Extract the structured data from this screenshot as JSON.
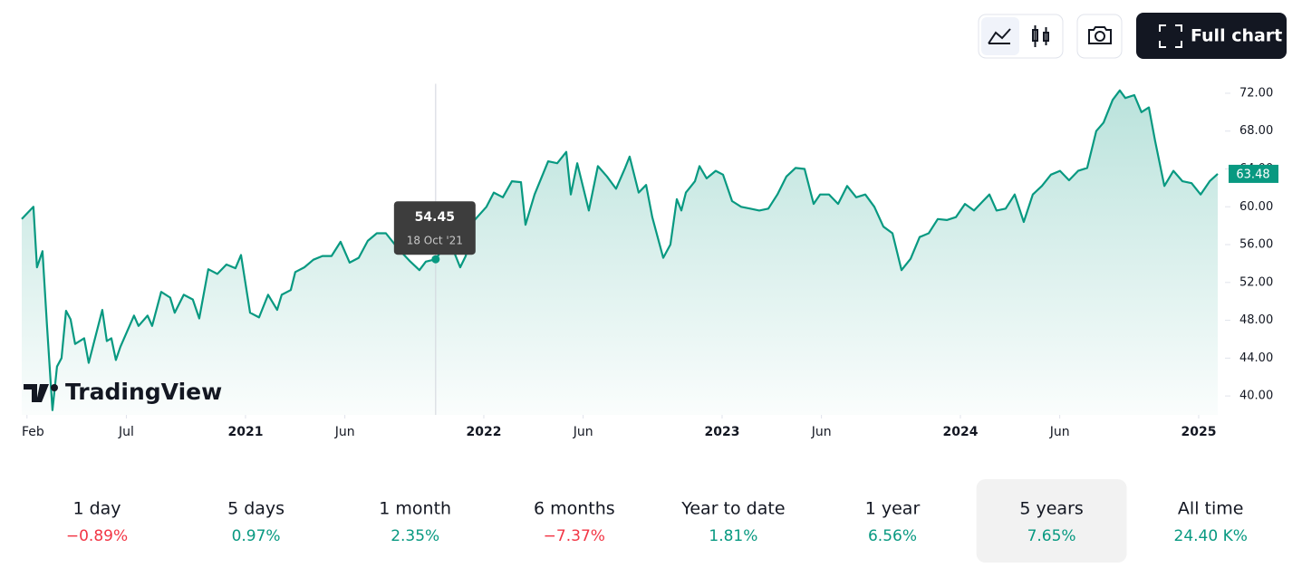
{
  "toolbar": {
    "full_chart": "Full chart"
  },
  "watermark": "TradingView",
  "chart_data": {
    "type": "line",
    "color": "#089981",
    "x": [
      2020.061,
      2020.11,
      2020.125,
      2020.148,
      2020.167,
      2020.19,
      2020.209,
      2020.228,
      2020.247,
      2020.266,
      2020.285,
      2020.323,
      2020.342,
      2020.399,
      2020.418,
      2020.437,
      2020.456,
      2020.475,
      2020.532,
      2020.551,
      2020.589,
      2020.608,
      2020.646,
      2020.684,
      2020.703,
      2020.741,
      2020.779,
      2020.806,
      2020.844,
      2020.882,
      2020.92,
      2020.958,
      2020.981,
      2021.019,
      2021.057,
      2021.095,
      2021.133,
      2021.152,
      2021.19,
      2021.209,
      2021.247,
      2021.285,
      2021.323,
      2021.361,
      2021.399,
      2021.437,
      2021.475,
      2021.513,
      2021.551,
      2021.589,
      2021.643,
      2021.688,
      2021.73,
      2021.757,
      2021.798,
      2021.84,
      2021.871,
      2021.901,
      2021.924,
      2021.954,
      2022.011,
      2022.042,
      2022.08,
      2022.118,
      2022.156,
      2022.175,
      2022.213,
      2022.27,
      2022.308,
      2022.346,
      2022.365,
      2022.392,
      2022.441,
      2022.479,
      2022.517,
      2022.555,
      2022.593,
      2022.612,
      2022.65,
      2022.681,
      2022.707,
      2022.753,
      2022.783,
      2022.81,
      2022.829,
      2022.848,
      2022.886,
      2022.905,
      2022.935,
      2022.973,
      2023.004,
      2023.042,
      2023.08,
      2023.118,
      2023.156,
      2023.194,
      2023.232,
      2023.27,
      2023.308,
      2023.346,
      2023.384,
      2023.411,
      2023.449,
      2023.487,
      2023.525,
      2023.563,
      2023.601,
      2023.639,
      2023.677,
      2023.715,
      2023.753,
      2023.791,
      2023.829,
      2023.867,
      2023.905,
      2023.943,
      2023.981,
      2024.019,
      2024.057,
      2024.095,
      2024.122,
      2024.152,
      2024.19,
      2024.228,
      2024.266,
      2024.304,
      2024.342,
      2024.38,
      2024.418,
      2024.456,
      2024.494,
      2024.532,
      2024.57,
      2024.601,
      2024.639,
      2024.669,
      2024.692,
      2024.73,
      2024.76,
      2024.791,
      2024.817,
      2024.856,
      2024.894,
      2024.932,
      2024.97,
      2025.008,
      2025.046,
      2025.08
    ],
    "values": [
      58.7,
      60.0,
      53.6,
      55.3,
      47.4,
      38.5,
      43.1,
      44.0,
      49.0,
      48.1,
      45.5,
      46.1,
      43.5,
      49.1,
      45.8,
      46.1,
      43.8,
      45.2,
      48.5,
      47.4,
      48.5,
      47.4,
      51.0,
      50.4,
      48.8,
      50.7,
      50.2,
      48.2,
      53.4,
      52.9,
      53.9,
      53.5,
      54.9,
      48.8,
      48.3,
      50.7,
      49.1,
      50.7,
      51.2,
      53.1,
      53.6,
      54.4,
      54.8,
      54.8,
      56.3,
      54.1,
      54.6,
      56.4,
      57.2,
      57.2,
      55.5,
      54.3,
      53.3,
      54.2,
      54.45,
      56.0,
      55.5,
      53.6,
      54.8,
      58.4,
      60.0,
      61.5,
      61.0,
      62.7,
      62.6,
      58.1,
      61.3,
      64.8,
      64.6,
      65.8,
      61.3,
      64.6,
      59.6,
      64.3,
      63.2,
      61.9,
      64.1,
      65.3,
      61.5,
      62.3,
      58.9,
      54.6,
      56.0,
      60.8,
      59.6,
      61.5,
      62.7,
      64.3,
      63.0,
      63.8,
      63.4,
      60.6,
      60.0,
      59.8,
      59.6,
      59.8,
      61.3,
      63.2,
      64.1,
      64.0,
      60.3,
      61.3,
      61.3,
      60.3,
      62.2,
      61.0,
      61.3,
      60.0,
      57.9,
      57.2,
      53.3,
      54.5,
      56.8,
      57.2,
      58.7,
      58.6,
      58.9,
      60.3,
      59.6,
      60.6,
      61.3,
      59.6,
      59.8,
      61.3,
      58.4,
      61.3,
      62.2,
      63.4,
      63.8,
      62.8,
      63.8,
      64.1,
      68.0,
      68.9,
      71.3,
      72.3,
      71.5,
      71.8,
      70.0,
      70.5,
      67.0,
      62.2,
      63.8,
      62.7,
      62.5,
      61.3,
      62.7,
      63.48
    ],
    "last_label": "63.48",
    "tooltip": {
      "value_label": "54.45",
      "date_label": "18 Oct '21"
    },
    "xlim": [
      2020.061,
      2025.08
    ],
    "xticks": [
      {
        "value": 2020.083,
        "label": "Feb"
      },
      {
        "value": 2020.5,
        "label": "Jul"
      },
      2021,
      {
        "value": 2021.417,
        "label": "Jun"
      },
      2022,
      {
        "value": 2022.417,
        "label": "Jun"
      },
      2023,
      {
        "value": 2023.417,
        "label": "Jun"
      },
      2024,
      {
        "value": 2024.417,
        "label": "Jun"
      },
      2025
    ],
    "ylim": [
      38,
      73
    ],
    "yticks": [
      {
        "value": 40,
        "label": "40.00"
      },
      {
        "value": 44,
        "label": "44.00"
      },
      {
        "value": 48,
        "label": "48.00"
      },
      {
        "value": 52,
        "label": "52.00"
      },
      {
        "value": 56,
        "label": "56.00"
      },
      {
        "value": 60,
        "label": "60.00"
      },
      {
        "value": 64,
        "label": "64.00"
      },
      {
        "value": 68,
        "label": "68.00"
      },
      {
        "value": 72,
        "label": "72.00"
      }
    ]
  },
  "periods": [
    {
      "label": "1 day",
      "change": "−0.89%"
    },
    {
      "label": "5 days",
      "change": "0.97%"
    },
    {
      "label": "1 month",
      "change": "2.35%"
    },
    {
      "label": "6 months",
      "change": "−7.37%"
    },
    {
      "label": "Year to date",
      "change": "1.81%"
    },
    {
      "label": "1 year",
      "change": "6.56%"
    },
    {
      "label": "5 years",
      "change": "7.65%",
      "selected": true
    },
    {
      "label": "All time",
      "change": "24.40 K%"
    }
  ]
}
